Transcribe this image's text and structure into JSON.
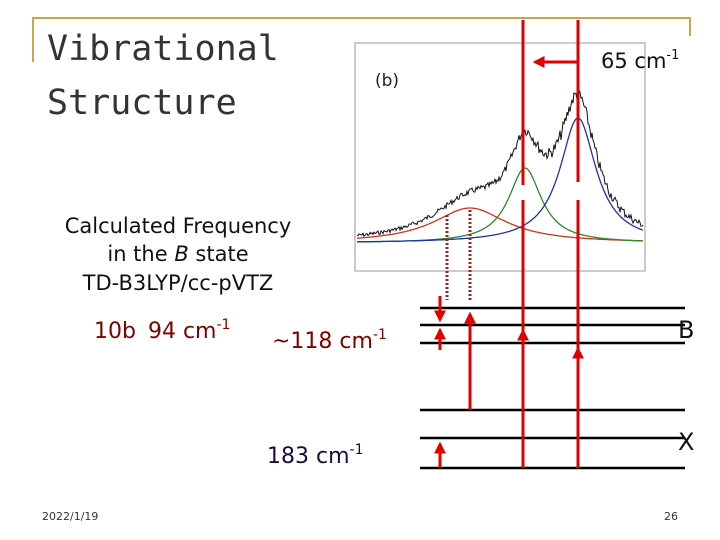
{
  "title": [
    "Vibrational",
    "Structure"
  ],
  "figure": {
    "panel_label": "(b)",
    "splitting": {
      "text": "65 cm",
      "sup": "-1"
    }
  },
  "calculation": {
    "line1": "Calculated Frequency",
    "line2": {
      "before": "in the ",
      "italic": "B",
      "after": " state"
    },
    "line3": "TD-B3LYP/cc-pVTZ"
  },
  "frequencies": [
    {
      "mode": "10b",
      "text": "94 cm",
      "sup": "-1"
    },
    {
      "text": "~118 cm",
      "sup": "-1"
    },
    {
      "text": "183 cm",
      "sup": "-1"
    }
  ],
  "states": [
    "B",
    "X"
  ],
  "footer": {
    "date": "2022/1/19",
    "page": "26"
  }
}
